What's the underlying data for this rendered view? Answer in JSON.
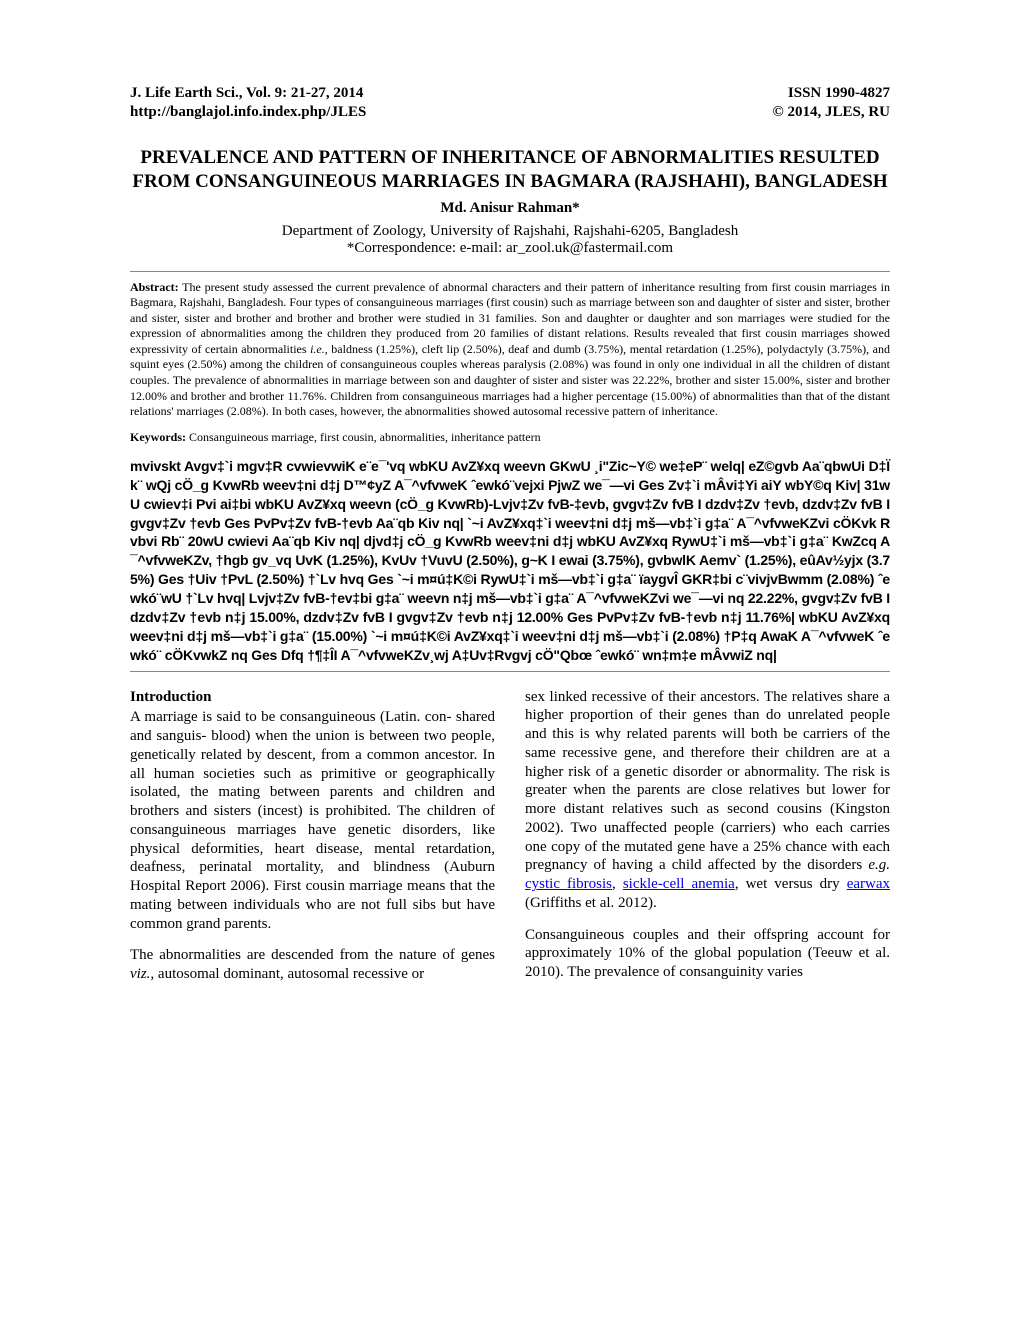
{
  "header": {
    "journal_line": "J. Life Earth Sci., Vol. 9: 21-27, 2014",
    "url_line": "http://banglajol.info.index.php/JLES",
    "issn": "ISSN 1990-4827",
    "copyright": "© 2014, JLES, RU"
  },
  "title": "PREVALENCE AND PATTERN OF INHERITANCE OF ABNORMALITIES RESULTED FROM CONSANGUINEOUS MARRIAGES IN BAGMARA (RAJSHAHI), BANGLADESH",
  "author": "Md. Anisur Rahman*",
  "affiliation": "Department of Zoology, University of Rajshahi, Rajshahi-6205, Bangladesh",
  "correspondence": "*Correspondence: e-mail: ar_zool.uk@fastermail.com",
  "abstract_label": "Abstract:",
  "abstract_body1": " The present study assessed the current prevalence of abnormal characters and their pattern of inheritance resulting from first cousin marriages in Bagmara, Rajshahi, Bangladesh. Four types of consanguineous marriages (first cousin) such as marriage between son and daughter of sister and sister, brother and sister, sister and brother and brother and brother were studied in 31 families. Son and daughter or daughter and son marriages were studied for the expression of abnormalities among the children they produced from 20 families of distant relations. Results revealed that first cousin marriages showed expressivity of certain abnormalities ",
  "ie_label": "i.e.,",
  "abstract_body2": " baldness (1.25%), cleft lip (2.50%), deaf and dumb (3.75%), mental retardation (1.25%), polydactyly (3.75%), and squint eyes (2.50%) among the children of consanguineous couples whereas paralysis (2.08%) was found in only one individual in all the children of distant couples. The prevalence of abnormalities in marriage between son and daughter of sister and sister was 22.22%, brother and sister 15.00%, sister and brother 12.00% and brother and brother 11.76%. Children from consanguineous marriages had a higher percentage (15.00%) of abnormalities than that of the distant relations' marriages (2.08%). In both cases, however, the abnormalities showed autosomal recessive pattern of inheritance.",
  "keywords_label": "Keywords:",
  "keywords_text": " Consanguineous marriage, first cousin, abnormalities, inheritance pattern",
  "bangla_title": "mvivskt",
  "bangla_text": " Avgv‡`i mgv‡R cvwievwiK e¨e¯'vq wbKU AvZ¥xq weevn GKwU ¸i\"Zic~Y© we‡eP¨ welq| eZ©gvb Aa¨qbwUi D‡Ïk¨ wQj cÖ_g KvwRb weev‡ni d‡j D™¢yZ A¯^vfvweK ˆewkó¨vejxi PjwZ we¯—vi Ges Zv‡`i mÂvi‡Yi aiY wbY©q Kiv| 31wU cwiev‡i Pvi ai‡bi wbKU AvZ¥xq weevn (cÖ_g KvwRb)-Lvjv‡Zv fvB-‡evb, gvgv‡Zv fvB I dzdv‡Zv †evb, dzdv‡Zv fvB I gvgv‡Zv †evb Ges PvPv‡Zv fvB-†evb Aa¨qb Kiv nq| `~i AvZ¥xq‡`i weev‡ni d‡j mš—vb‡`i g‡a¨ A¯^vfvweKZvi cÖKvk Rvbvi Rb¨ 20wU cwievi Aa¨qb Kiv nq| djvd‡j cÖ_g KvwRb weev‡ni d‡j wbKU AvZ¥xq RywU‡`i mš—vb‡`i g‡a¨ KwZcq A¯^vfvweKZv, †hgb gv_vq UvK (1.25%), KvUv †VuvU (2.50%), g~K I ewai (3.75%), gvbwlK Aemv` (1.25%), eûAv½yjx (3.75%) Ges †Uiv †PvL (2.50%) †`Lv hvq Ges `~i m¤ú‡K©i RywU‡`i mš—vb‡`i g‡a¨ ïaygvÎ GKR‡bi c¨vivjvBwmm (2.08%) ˆewkó¨wU †`Lv hvq| Lvjv‡Zv fvB-†ev‡bi g‡a¨ weevn n‡j mš—vb‡`i g‡a¨ A¯^vfvweKZvi we¯—vi nq 22.22%, gvgv‡Zv fvB I dzdv‡Zv †evb n‡j 15.00%, dzdv‡Zv fvB I gvgv‡Zv †evb n‡j 12.00% Ges PvPv‡Zv fvB-†evb n‡j 11.76%| wbKU AvZ¥xq weev‡ni d‡j mš—vb‡`i g‡a¨ (15.00%) `~i m¤ú‡K©i AvZ¥xq‡`i weev‡ni d‡j mš—vb‡`i (2.08%) †P‡q AwaK A¯^vfvweK ˆewkó¨ cÖKvwkZ nq Ges Dfq †¶‡ÎI A¯^vfvweKZv¸wj A‡Uv‡Rvgvj cÖ\"Qbœ ˆewkó¨ wn‡m‡e mÂvwiZ nq|",
  "intro": {
    "title": "Introduction",
    "para1": "A marriage is said to be consanguineous (Latin. con- shared and sanguis- blood) when the union is between two people, genetically related by descent, from a common ancestor. In all human societies such as primitive or geographically isolated, the mating between parents and children and brothers and sisters (incest) is prohibited. The children of consanguineous marriages have genetic disorders, like physical deformities, heart disease, mental retardation, deafness, perinatal mortality, and blindness (Auburn Hospital Report 2006). First cousin marriage means that the mating between individuals who are not full sibs but have common grand parents.",
    "para2_a": "The abnormalities are descended from the nature of genes ",
    "para2_viz": "viz.,",
    "para2_b": " autosomal dominant, autosomal recessive or",
    "para3_a": "sex linked recessive of their ancestors. The relatives share a higher proportion of their genes than do unrelated people and this is why related parents will both be carriers of the same recessive gene, and therefore their children are at a higher risk of a genetic disorder or abnormality. The risk is greater when the parents are close relatives but lower for more distant relatives such as second cousins (Kingston 2002). Two unaffected people (carriers) who each carries one copy of the mutated gene have a 25% chance with each pregnancy of having a child affected by the disorders ",
    "para3_eg": "e.g.",
    "para3_b": " ",
    "link1": "cystic fibrosis",
    "para3_c": ", ",
    "link2": "sickle-cell anemia",
    "para3_d": ", wet versus dry ",
    "link3": "earwax",
    "para3_e": " (Griffiths et al. 2012).",
    "para4": "Consanguineous couples and their offspring account for approximately 10% of the global population (Teeuw et al. 2010). The prevalence of consanguinity varies"
  }
}
